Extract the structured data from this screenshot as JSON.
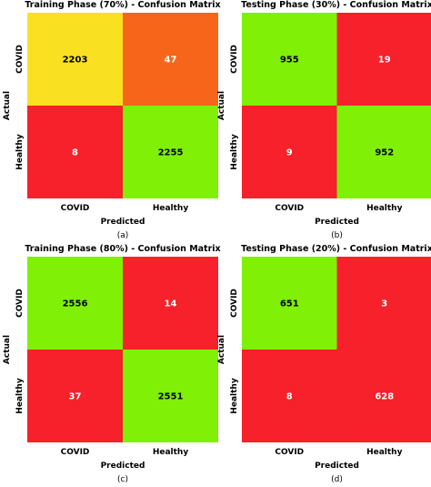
{
  "chart_data": [
    {
      "type": "heatmap",
      "title": "Training Phase (70%) - Confusion Matrix",
      "xlabel": "Predicted",
      "ylabel": "Actual",
      "x_categories": [
        "COVID",
        "Healthy"
      ],
      "y_categories": [
        "COVID",
        "Healthy"
      ],
      "values": [
        [
          2203,
          47
        ],
        [
          8,
          2255
        ]
      ],
      "cell_colors": [
        [
          "#f9e121",
          "#f7651a"
        ],
        [
          "#f6212a",
          "#7ff006"
        ]
      ],
      "value_colors": [
        [
          "#000000",
          "#ffffff"
        ],
        [
          "#ffffff",
          "#000000"
        ]
      ],
      "caption": "(a)"
    },
    {
      "type": "heatmap",
      "title": "Testing Phase (30%) - Confusion Matrix",
      "xlabel": "Predicted",
      "ylabel": "Actual",
      "x_categories": [
        "COVID",
        "Healthy"
      ],
      "y_categories": [
        "COVID",
        "Healthy"
      ],
      "values": [
        [
          955,
          19
        ],
        [
          9,
          952
        ]
      ],
      "cell_colors": [
        [
          "#7ff006",
          "#f6212a"
        ],
        [
          "#f6212a",
          "#7ff006"
        ]
      ],
      "value_colors": [
        [
          "#000000",
          "#ffffff"
        ],
        [
          "#ffffff",
          "#000000"
        ]
      ],
      "caption": "(b)"
    },
    {
      "type": "heatmap",
      "title": "Training Phase (80%) - Confusion Matrix",
      "xlabel": "Predicted",
      "ylabel": "Actual",
      "x_categories": [
        "COVID",
        "Healthy"
      ],
      "y_categories": [
        "COVID",
        "Healthy"
      ],
      "values": [
        [
          2556,
          14
        ],
        [
          37,
          2551
        ]
      ],
      "cell_colors": [
        [
          "#7ff006",
          "#f6212a"
        ],
        [
          "#f6212a",
          "#7ff006"
        ]
      ],
      "value_colors": [
        [
          "#000000",
          "#ffffff"
        ],
        [
          "#ffffff",
          "#000000"
        ]
      ],
      "caption": "(c)"
    },
    {
      "type": "heatmap",
      "title": "Testing Phase (20%) - Confusion Matrix",
      "xlabel": "Predicted",
      "ylabel": "Actual",
      "x_categories": [
        "COVID",
        "Healthy"
      ],
      "y_categories": [
        "COVID",
        "Healthy"
      ],
      "values": [
        [
          651,
          3
        ],
        [
          8,
          628
        ]
      ],
      "cell_colors": [
        [
          "#7ff006",
          "#f6212a"
        ],
        [
          "#f6212a",
          "#f6212a"
        ]
      ],
      "value_colors": [
        [
          "#000000",
          "#ffffff"
        ],
        [
          "#ffffff",
          "#ffffff"
        ]
      ],
      "caption": "(d)"
    }
  ]
}
